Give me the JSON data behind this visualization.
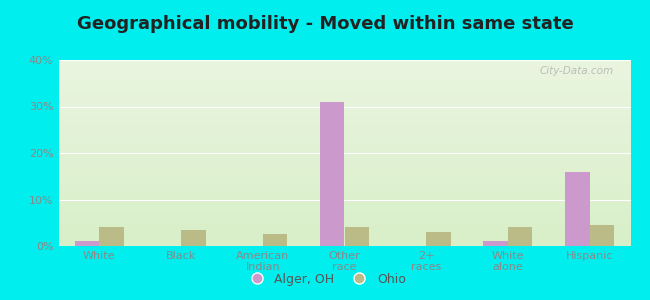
{
  "title": "Geographical mobility - Moved within same state",
  "categories": [
    "White",
    "Black",
    "American\nIndian",
    "Other\nrace",
    "2+\nraces",
    "White\nalone",
    "Hispanic"
  ],
  "alger_values": [
    1.0,
    0.0,
    0.0,
    31.0,
    0.0,
    1.0,
    16.0
  ],
  "ohio_values": [
    4.0,
    3.5,
    2.5,
    4.0,
    3.0,
    4.0,
    4.5
  ],
  "alger_color": "#cc99cc",
  "ohio_color": "#bbbb88",
  "background_color": "#00eeee",
  "plot_bg_top": "#eaf5e0",
  "plot_bg_bottom": "#d8efc8",
  "bar_width": 0.3,
  "ylim": [
    0,
    40
  ],
  "yticks": [
    0,
    10,
    20,
    30,
    40
  ],
  "ytick_labels": [
    "0%",
    "10%",
    "20%",
    "30%",
    "40%"
  ],
  "legend_labels": [
    "Alger, OH",
    "Ohio"
  ],
  "title_fontsize": 13,
  "tick_fontsize": 8,
  "legend_fontsize": 9,
  "watermark_text": "City-Data.com"
}
